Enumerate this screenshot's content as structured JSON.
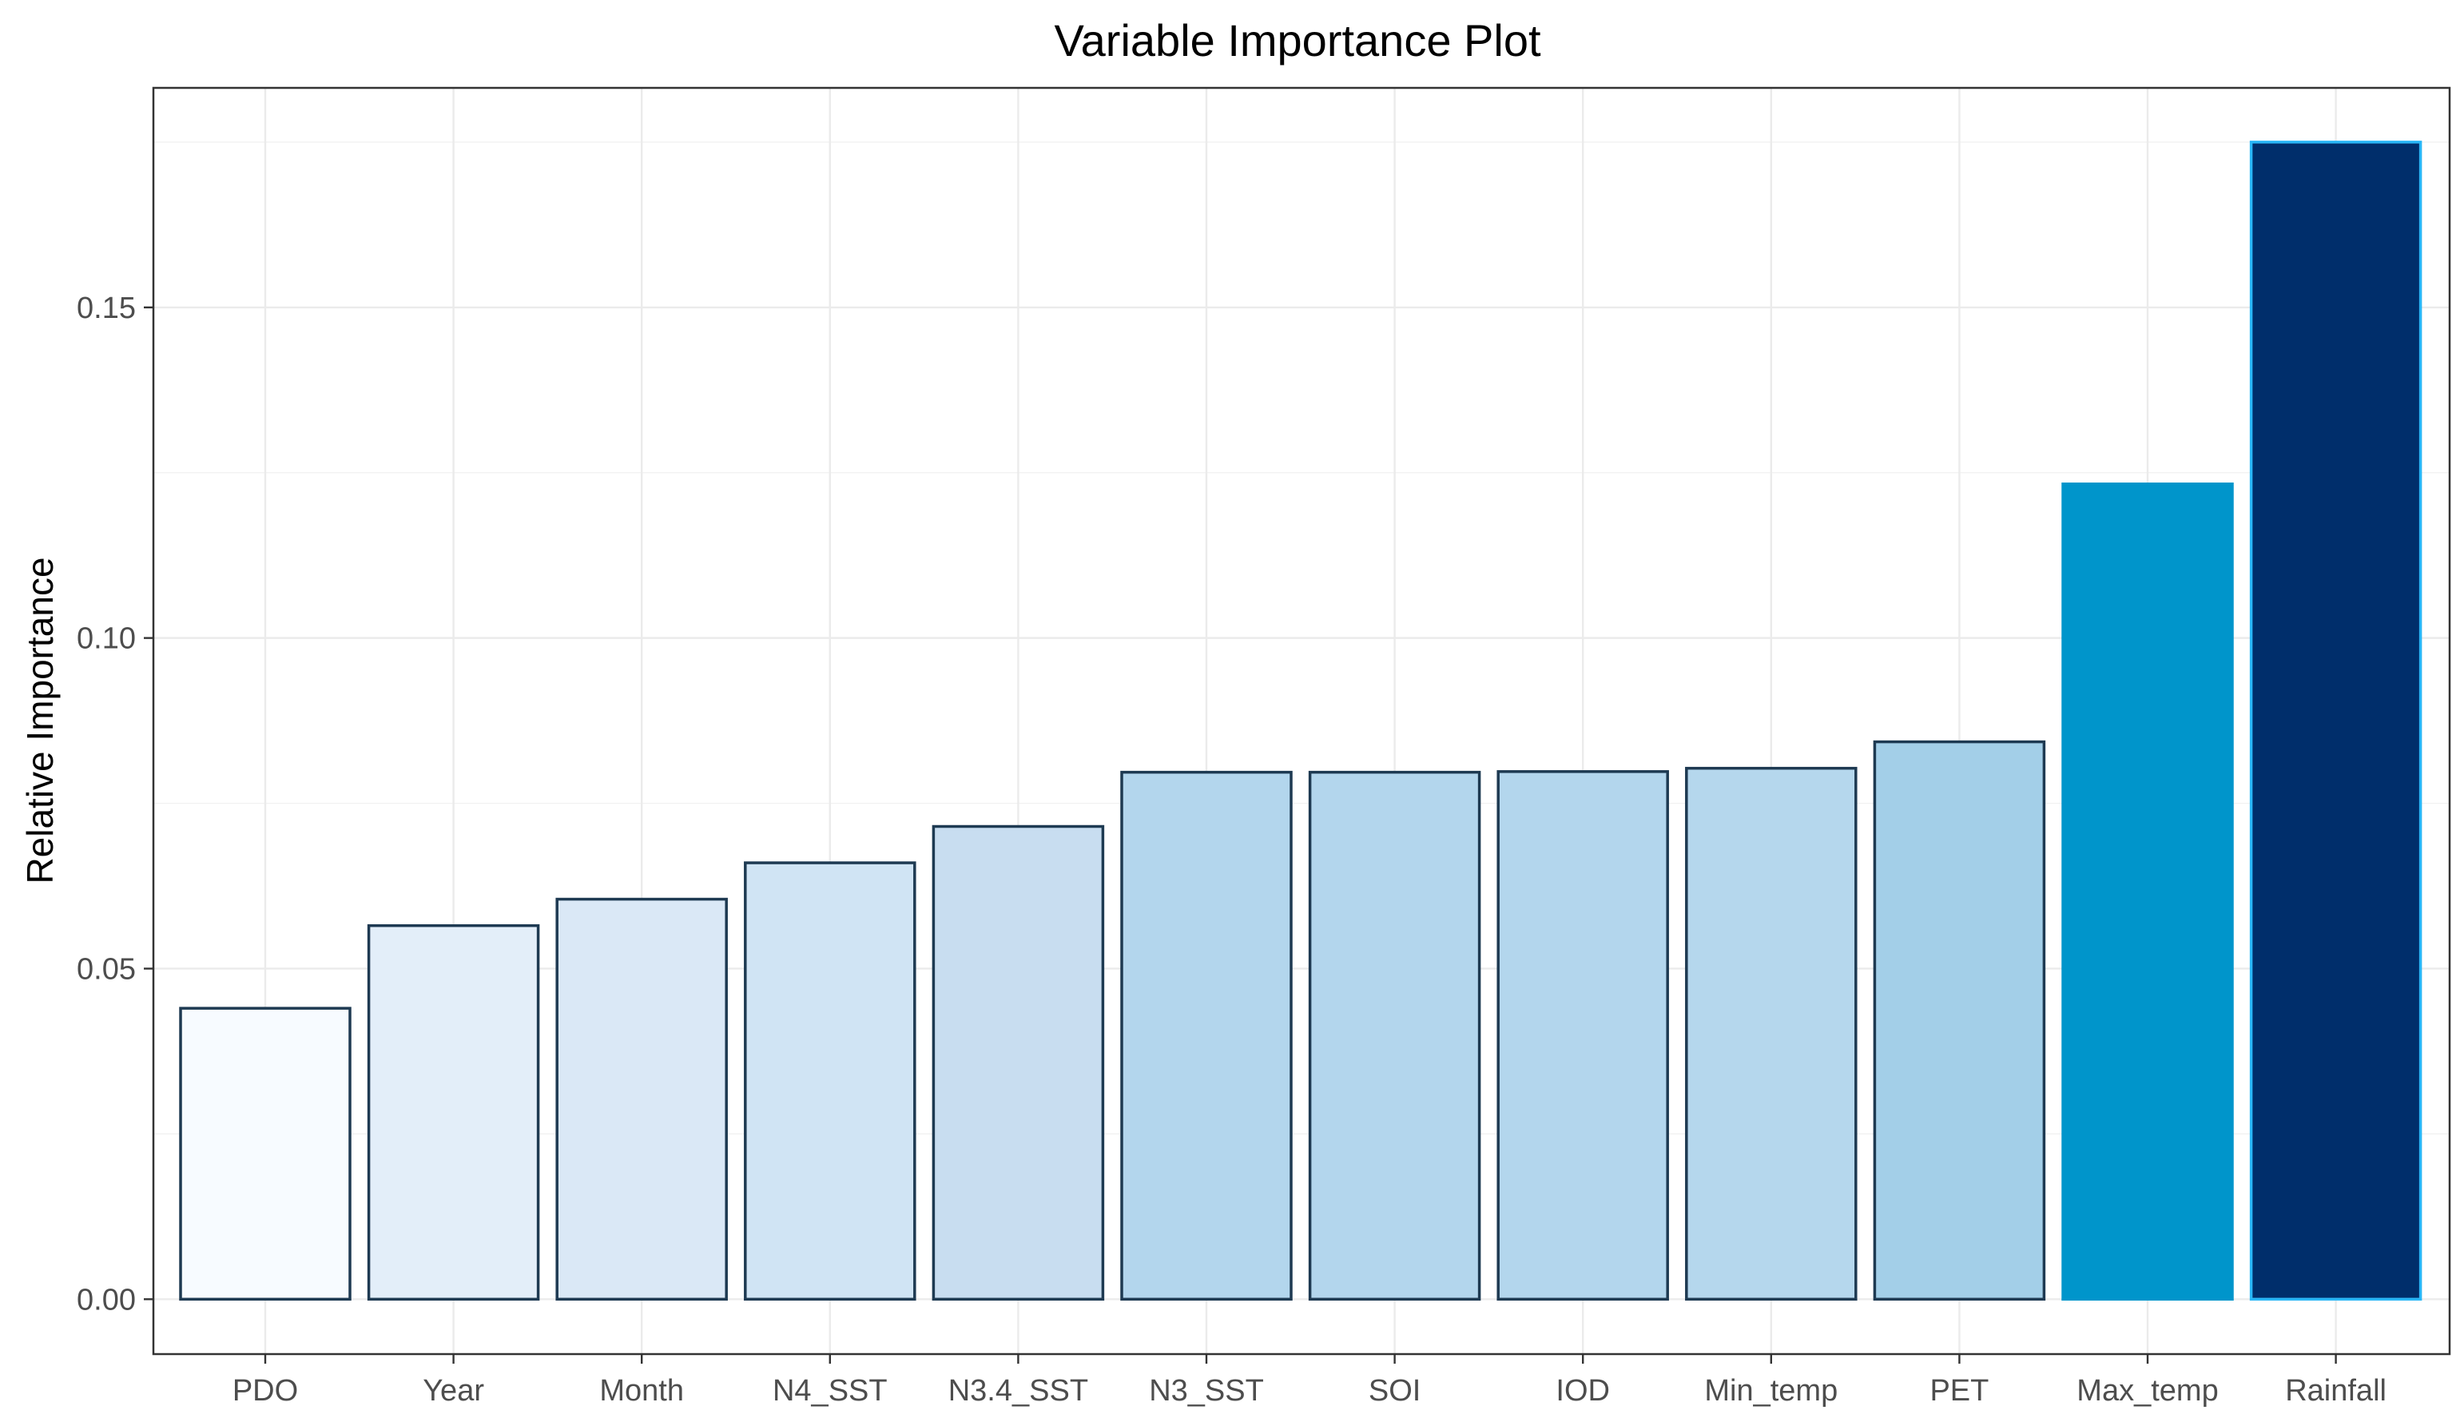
{
  "chart_data": {
    "type": "bar",
    "title": "Variable Importance Plot",
    "xlabel": "",
    "ylabel": "Relative Importance",
    "categories": [
      "PDO",
      "Year",
      "Month",
      "N4_SST",
      "N3.4_SST",
      "N3_SST",
      "SOI",
      "IOD",
      "Min_temp",
      "PET",
      "Max_temp",
      "Rainfall"
    ],
    "values": [
      0.044,
      0.0565,
      0.0605,
      0.066,
      0.0715,
      0.0797,
      0.0797,
      0.0798,
      0.0803,
      0.0843,
      0.1233,
      0.175
    ],
    "bar_colors": [
      "#f7fbff",
      "#e3eef9",
      "#dae8f6",
      "#d0e4f4",
      "#c8ddf0",
      "#b3d6ed",
      "#b3d6ed",
      "#b3d6ed",
      "#b5d7ed",
      "#a3cfe8",
      "#0095cb",
      "#002e6b"
    ],
    "bar_outline_colors": [
      "#1e3a52",
      "#1e3a52",
      "#1e3a52",
      "#1e3a52",
      "#1e3a52",
      "#1e3a52",
      "#1e3a52",
      "#1e3a52",
      "#1e3a52",
      "#1e3a52",
      "#0095cb",
      "#29b6f6"
    ],
    "y_ticks": [
      "0.00",
      "0.05",
      "0.10",
      "0.15"
    ],
    "y_tick_values": [
      0,
      0.05,
      0.1,
      0.15
    ],
    "ylim": [
      -0.0083,
      0.1832
    ],
    "grid": true,
    "legend": "none"
  }
}
